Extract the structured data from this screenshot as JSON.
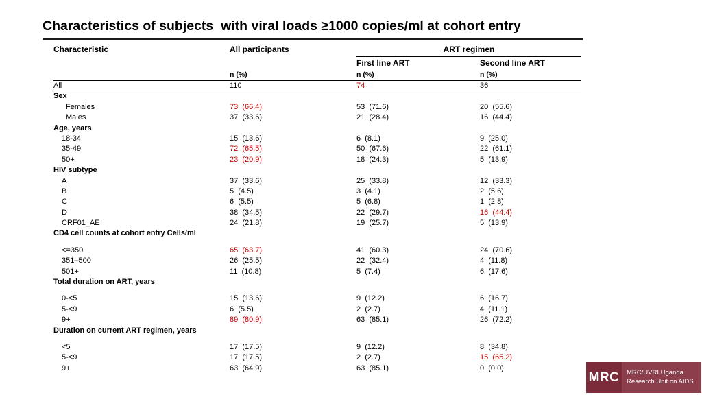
{
  "title": "Characteristics of subjects  with viral loads ≥1000 copies/ml at cohort entry",
  "colors": {
    "red": "#c00000",
    "text": "#000000",
    "logo_dark": "#7b2b39",
    "logo_light": "#8d3e4d"
  },
  "table": {
    "headers": {
      "characteristic": "Characteristic",
      "all_participants": "All participants",
      "art_regimen": "ART regimen",
      "first_line": "First line ART",
      "second_line": "Second line ART",
      "n_pct_all": "n (%)",
      "n_pct_first": "n (%)",
      "n_pct_second": "n (%)"
    },
    "rows": [
      {
        "type": "data",
        "label": "All",
        "indent": 0,
        "values": [
          "110",
          "74",
          "36"
        ],
        "red": [
          false,
          true,
          false
        ],
        "rule_below": true
      },
      {
        "type": "section",
        "label": "Sex"
      },
      {
        "type": "data",
        "label": "Females",
        "indent": 18,
        "values": [
          "73  (66.4)",
          "53  (71.6)",
          "20  (55.6)"
        ],
        "red": [
          true,
          false,
          false
        ]
      },
      {
        "type": "data",
        "label": "Males",
        "indent": 18,
        "values": [
          "37  (33.6)",
          "21  (28.4)",
          "16  (44.4)"
        ],
        "red": [
          false,
          false,
          false
        ]
      },
      {
        "type": "section",
        "label": "Age, years"
      },
      {
        "type": "data",
        "label": "18-34",
        "indent": 12,
        "values": [
          "15  (13.6)",
          "6  (8.1)",
          "9  (25.0)"
        ],
        "red": [
          false,
          false,
          false
        ]
      },
      {
        "type": "data",
        "label": "35-49",
        "indent": 12,
        "values": [
          "72  (65.5)",
          "50  (67.6)",
          "22  (61.1)"
        ],
        "red": [
          true,
          false,
          false
        ]
      },
      {
        "type": "data",
        "label": "50+",
        "indent": 12,
        "values": [
          "23  (20.9)",
          "18  (24.3)",
          "5  (13.9)"
        ],
        "red": [
          true,
          false,
          false
        ]
      },
      {
        "type": "section",
        "label": "HIV subtype"
      },
      {
        "type": "data",
        "label": "A",
        "indent": 12,
        "values": [
          "37  (33.6)",
          "25  (33.8)",
          "12  (33.3)"
        ],
        "red": [
          false,
          false,
          false
        ]
      },
      {
        "type": "data",
        "label": "B",
        "indent": 12,
        "values": [
          "5  (4.5)",
          "3  (4.1)",
          "2  (5.6)"
        ],
        "red": [
          false,
          false,
          false
        ]
      },
      {
        "type": "data",
        "label": "C",
        "indent": 12,
        "values": [
          "6  (5.5)",
          "5  (6.8)",
          "1  (2.8)"
        ],
        "red": [
          false,
          false,
          false
        ]
      },
      {
        "type": "data",
        "label": "D",
        "indent": 12,
        "values": [
          "38  (34.5)",
          "22  (29.7)",
          "16  (44.4)"
        ],
        "red": [
          false,
          false,
          true
        ]
      },
      {
        "type": "data",
        "label": "CRF01_AE",
        "indent": 12,
        "values": [
          "24  (21.8)",
          "19  (25.7)",
          "5  (13.9)"
        ],
        "red": [
          false,
          false,
          false
        ]
      },
      {
        "type": "section",
        "label": "CD4 cell counts at cohort entry Cells/ml"
      },
      {
        "type": "spacer"
      },
      {
        "type": "data",
        "label": "<=350",
        "indent": 12,
        "values": [
          "65  (63.7)",
          "41  (60.3)",
          "24  (70.6)"
        ],
        "red": [
          true,
          false,
          false
        ]
      },
      {
        "type": "data",
        "label": "351–500",
        "indent": 12,
        "values": [
          "26  (25.5)",
          "22  (32.4)",
          "4  (11.8)"
        ],
        "red": [
          false,
          false,
          false
        ]
      },
      {
        "type": "data",
        "label": "501+",
        "indent": 12,
        "values": [
          "11  (10.8)",
          "5  (7.4)",
          "6  (17.6)"
        ],
        "red": [
          false,
          false,
          false
        ]
      },
      {
        "type": "section",
        "label": "Total duration on ART, years"
      },
      {
        "type": "spacer"
      },
      {
        "type": "data",
        "label": "0-<5",
        "indent": 12,
        "values": [
          "15  (13.6)",
          "9  (12.2)",
          "6  (16.7)"
        ],
        "red": [
          false,
          false,
          false
        ]
      },
      {
        "type": "data",
        "label": "5-<9",
        "indent": 12,
        "values": [
          "6  (5.5)",
          "2  (2.7)",
          "4  (11.1)"
        ],
        "red": [
          false,
          false,
          false
        ]
      },
      {
        "type": "data",
        "label": "9+",
        "indent": 12,
        "values": [
          "89  (80.9)",
          "63  (85.1)",
          "26  (72.2)"
        ],
        "red": [
          true,
          false,
          false
        ]
      },
      {
        "type": "section",
        "label": "Duration on current ART regimen, years"
      },
      {
        "type": "spacer"
      },
      {
        "type": "data",
        "label": "<5",
        "indent": 12,
        "values": [
          "17  (17.5)",
          "9  (12.2)",
          "8  (34.8)"
        ],
        "red": [
          false,
          false,
          false
        ]
      },
      {
        "type": "data",
        "label": "5-<9",
        "indent": 12,
        "values": [
          "17  (17.5)",
          "2  (2.7)",
          "15  (65.2)"
        ],
        "red": [
          false,
          false,
          true
        ]
      },
      {
        "type": "data",
        "label": "9+",
        "indent": 12,
        "values": [
          "63  (64.9)",
          "63  (85.1)",
          "0  (0.0)"
        ],
        "red": [
          false,
          false,
          false
        ]
      }
    ]
  },
  "logo": {
    "abbr": "MRC",
    "line1": "MRC/UVRI Uganda",
    "line2": "Research Unit on AIDS"
  }
}
